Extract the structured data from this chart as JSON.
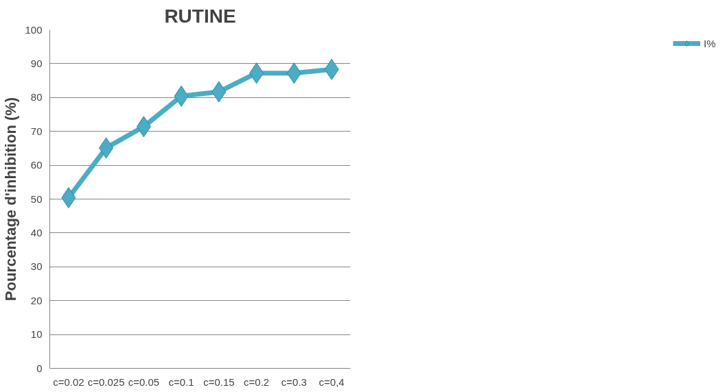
{
  "chart_data": {
    "type": "line",
    "title": "RUTINE",
    "ylabel": "Pourcentage d'inhibition (%)",
    "categories": [
      "c=0.02",
      "c=0.025",
      "c=0.05",
      "c=0.1",
      "c=0.15",
      "c=0.2",
      "c=0.3",
      "c=0,4"
    ],
    "series": [
      {
        "name": "I%",
        "color": "#4bacc6",
        "values": [
          50.4,
          65.1,
          71.4,
          80.4,
          81.7,
          87.2,
          87.2,
          88.3
        ]
      }
    ],
    "ylim": [
      0,
      100
    ],
    "yticks": [
      0,
      10,
      20,
      30,
      40,
      50,
      60,
      70,
      80,
      90,
      100
    ],
    "grid": "y",
    "legend": "right",
    "marker": "diamond",
    "line_style": "solid"
  }
}
